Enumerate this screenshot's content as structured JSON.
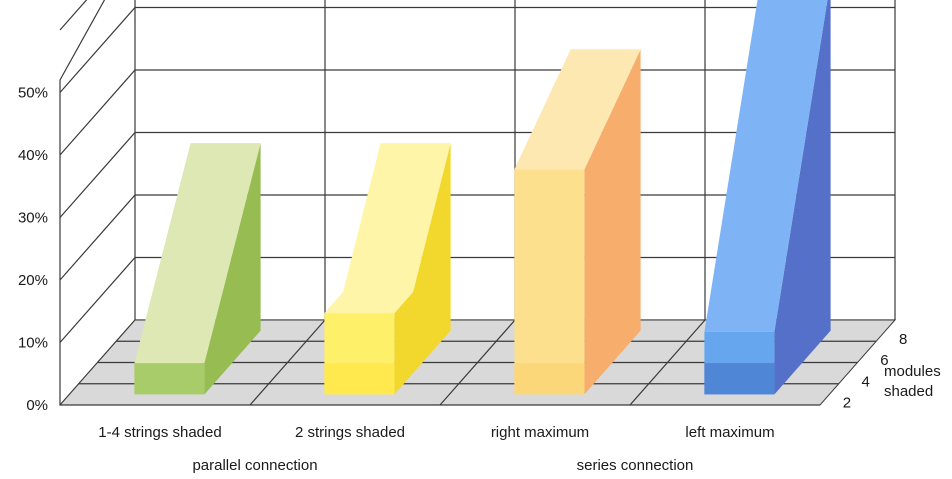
{
  "chart_data": {
    "type": "bar",
    "categories": [
      "1-4 strings shaded",
      "2 strings shaded",
      "right maximum",
      "left maximum"
    ],
    "category_groups": [
      {
        "label": "parallel connection",
        "categories": [
          "1-4 strings shaded",
          "2 strings shaded"
        ]
      },
      {
        "label": "series connection",
        "categories": [
          "right maximum",
          "left maximum"
        ]
      }
    ],
    "depth_axis": {
      "label": "modules\nshaded",
      "ticks": [
        "2",
        "4",
        "6",
        "8"
      ]
    },
    "series": [
      {
        "category": "1-4 strings shaded",
        "x": [
          2,
          8
        ],
        "values": [
          5,
          30
        ],
        "front_color": "#cbdc97",
        "side_color": "#96bc52",
        "top_color": "#dde8b4",
        "base_color": "#a8cc6a"
      },
      {
        "category": "2 strings shaded",
        "x": [
          2,
          4,
          8
        ],
        "values": [
          13,
          13,
          30
        ],
        "front_color": "#fff06a",
        "side_color": "#f2d82c",
        "top_color": "#fff5a8",
        "base_color": "#ffe94e"
      },
      {
        "category": "right maximum",
        "x": [
          2,
          8
        ],
        "values": [
          36,
          45
        ],
        "front_color": "#fce08e",
        "side_color": "#f7ad6c",
        "top_color": "#fde8b2",
        "base_color": "#fcd77a"
      },
      {
        "category": "left maximum",
        "x": [
          2,
          8
        ],
        "values": [
          10,
          56
        ],
        "front_color": "#66a6ee",
        "side_color": "#5470c8",
        "top_color": "#7eb4f5",
        "base_color": "#4f86d6"
      }
    ],
    "ylim": [
      0,
      60
    ],
    "yticks": [
      "0%",
      "10%",
      "20%",
      "30%",
      "40%",
      "50%"
    ],
    "grid": true
  }
}
